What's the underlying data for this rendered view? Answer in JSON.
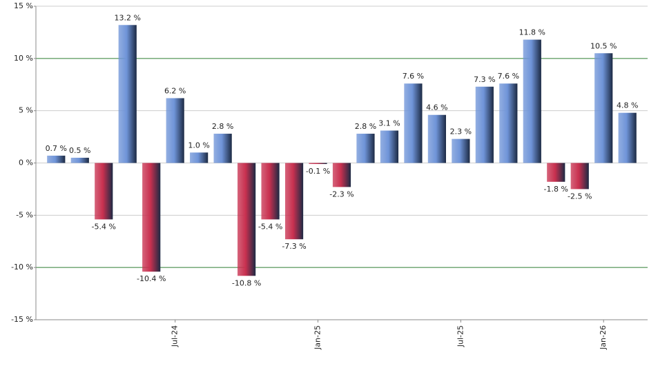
{
  "chart_data": {
    "type": "bar",
    "categories": [
      null,
      null,
      null,
      null,
      null,
      "Jul-24",
      null,
      null,
      null,
      null,
      null,
      "Jan-25",
      null,
      null,
      null,
      null,
      null,
      "Jul-25",
      null,
      null,
      null,
      null,
      null,
      "Jan-26",
      null
    ],
    "values": [
      0.7,
      0.5,
      -5.4,
      13.2,
      -10.4,
      6.2,
      1.0,
      2.8,
      -10.8,
      -5.4,
      -7.3,
      -0.1,
      -2.3,
      2.8,
      3.1,
      7.6,
      4.6,
      2.3,
      7.3,
      7.6,
      11.8,
      -1.8,
      -2.5,
      10.5,
      4.8
    ],
    "value_labels": [
      "0.7 %",
      "0.5 %",
      "-5.4 %",
      "13.2 %",
      "-10.4 %",
      "6.2 %",
      "1.0 %",
      "2.8 %",
      "-10.8 %",
      "-5.4 %",
      "-7.3 %",
      "-0.1 %",
      "-2.3 %",
      "2.8 %",
      "3.1 %",
      "7.6 %",
      "4.6 %",
      "2.3 %",
      "7.3 %",
      "7.6 %",
      "11.8 %",
      "-1.8 %",
      "-2.5 %",
      "10.5 %",
      "4.8 %"
    ],
    "positive_color": "#6f94d8",
    "negative_color": "#c8304f",
    "ylim": [
      -15,
      15
    ],
    "yticks": [
      {
        "value": -15,
        "label": "-15 %"
      },
      {
        "value": -10,
        "label": "-10 %"
      },
      {
        "value": -5,
        "label": "-5 %"
      },
      {
        "value": 0,
        "label": "0 %"
      },
      {
        "value": 5,
        "label": "5 %"
      },
      {
        "value": 10,
        "label": "10 %"
      },
      {
        "value": 15,
        "label": "15 %"
      }
    ],
    "grid": true,
    "grid_colors": [
      "#cccccc",
      "#2e7d32",
      "#cccccc",
      "#cccccc",
      "#cccccc",
      "#2e7d32",
      "#cccccc"
    ]
  }
}
